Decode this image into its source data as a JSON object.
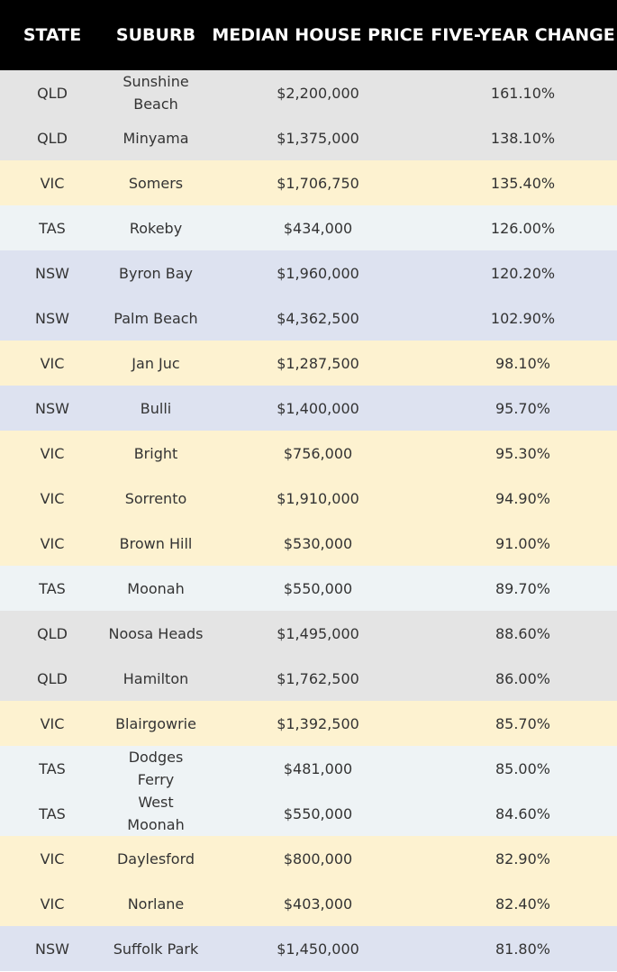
{
  "headers": {
    "state": "STATE",
    "suburb": "SUBURB",
    "price": "MEDIAN HOUSE PRICE",
    "change": "FIVE-YEAR CHANGE"
  },
  "state_colors": {
    "QLD": "#e4e4e4",
    "VIC": "#fdf2d0",
    "TAS": "#eef3f5",
    "NSW": "#dde2f0"
  },
  "rows": [
    {
      "state": "QLD",
      "suburb": "Sunshine Beach",
      "price": "$2,200,000",
      "change": "161.10%"
    },
    {
      "state": "QLD",
      "suburb": "Minyama",
      "price": "$1,375,000",
      "change": "138.10%"
    },
    {
      "state": "VIC",
      "suburb": "Somers",
      "price": "$1,706,750",
      "change": "135.40%"
    },
    {
      "state": "TAS",
      "suburb": "Rokeby",
      "price": "$434,000",
      "change": "126.00%"
    },
    {
      "state": "NSW",
      "suburb": "Byron Bay",
      "price": "$1,960,000",
      "change": "120.20%"
    },
    {
      "state": "NSW",
      "suburb": "Palm Beach",
      "price": "$4,362,500",
      "change": "102.90%"
    },
    {
      "state": "VIC",
      "suburb": "Jan Juc",
      "price": "$1,287,500",
      "change": "98.10%"
    },
    {
      "state": "NSW",
      "suburb": "Bulli",
      "price": "$1,400,000",
      "change": "95.70%"
    },
    {
      "state": "VIC",
      "suburb": "Bright",
      "price": "$756,000",
      "change": "95.30%"
    },
    {
      "state": "VIC",
      "suburb": "Sorrento",
      "price": "$1,910,000",
      "change": "94.90%"
    },
    {
      "state": "VIC",
      "suburb": "Brown Hill",
      "price": "$530,000",
      "change": "91.00%"
    },
    {
      "state": "TAS",
      "suburb": "Moonah",
      "price": "$550,000",
      "change": "89.70%"
    },
    {
      "state": "QLD",
      "suburb": "Noosa Heads",
      "price": "$1,495,000",
      "change": "88.60%"
    },
    {
      "state": "QLD",
      "suburb": "Hamilton",
      "price": "$1,762,500",
      "change": "86.00%"
    },
    {
      "state": "VIC",
      "suburb": "Blairgowrie",
      "price": "$1,392,500",
      "change": "85.70%"
    },
    {
      "state": "TAS",
      "suburb": "Dodges Ferry",
      "price": "$481,000",
      "change": "85.00%"
    },
    {
      "state": "TAS",
      "suburb": "West Moonah",
      "price": "$550,000",
      "change": "84.60%"
    },
    {
      "state": "VIC",
      "suburb": "Daylesford",
      "price": "$800,000",
      "change": "82.90%"
    },
    {
      "state": "VIC",
      "suburb": "Norlane",
      "price": "$403,000",
      "change": "82.40%"
    },
    {
      "state": "NSW",
      "suburb": "Suffolk Park",
      "price": "$1,450,000",
      "change": "81.80%"
    }
  ]
}
